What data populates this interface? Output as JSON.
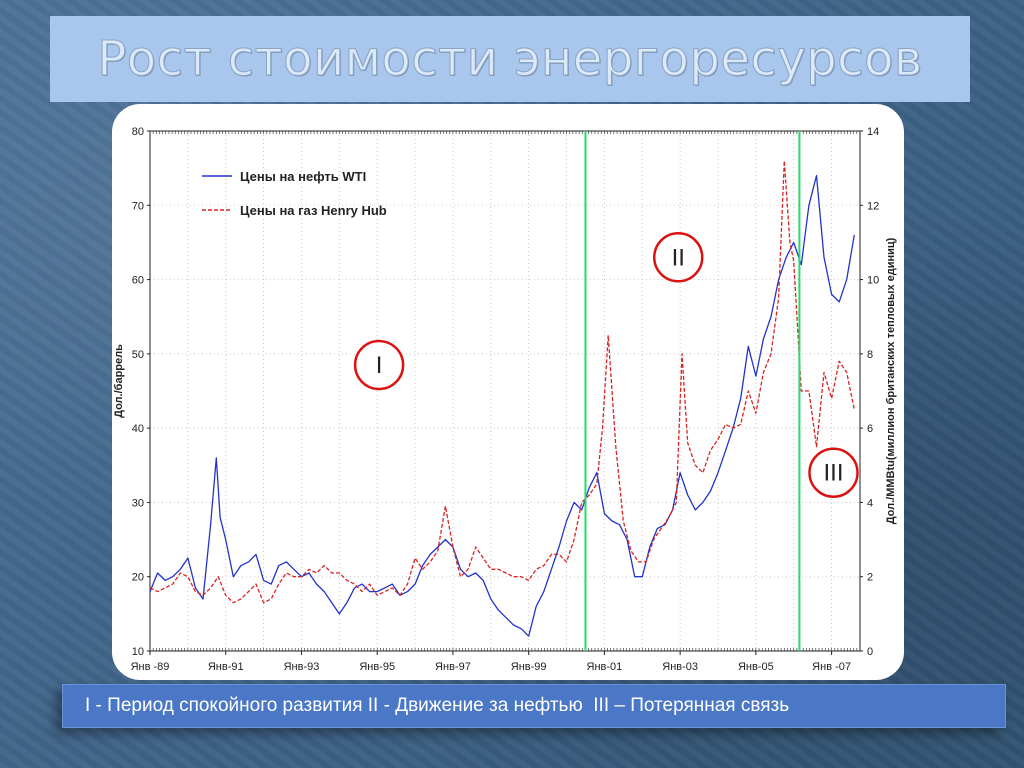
{
  "slide": {
    "title": "Рост стоимости энергоресурсов",
    "caption": "I - Период спокойного развития II - Движение за нефтью  III – Потерянная связь"
  },
  "colors": {
    "oil": "#2233cc",
    "gas": "#dd2222",
    "period_line": "#22dd66",
    "marker": "#dd1111"
  },
  "chart_data": {
    "type": "line",
    "ylabel": "Дол./баррель",
    "ylabel_right": "Дол./MMBtu(миллион британских тепловых единиц)",
    "ylim": [
      10,
      80
    ],
    "ylim_right": [
      0,
      14
    ],
    "y_ticks": [
      10,
      20,
      30,
      40,
      50,
      60,
      70,
      80
    ],
    "y_ticks_right": [
      0,
      2,
      4,
      6,
      8,
      10,
      12,
      14
    ],
    "x_range": [
      1989.0,
      2007.75
    ],
    "x_ticks": [
      {
        "x": 1989,
        "label": "Янв -89"
      },
      {
        "x": 1991,
        "label": "Янв-91"
      },
      {
        "x": 1993,
        "label": "Янв-93"
      },
      {
        "x": 1995,
        "label": "Янв-95"
      },
      {
        "x": 1997,
        "label": "Янв-97"
      },
      {
        "x": 1999,
        "label": "Янв-99"
      },
      {
        "x": 2001,
        "label": "Янв-01"
      },
      {
        "x": 2003,
        "label": "Янв-03"
      },
      {
        "x": 2005,
        "label": "Янв-05"
      },
      {
        "x": 2007,
        "label": "Янв -07"
      }
    ],
    "legend_position": "top-left",
    "grid": "dotted",
    "series": [
      {
        "name": "Цены на нефть WTI",
        "axis": "left",
        "x": [
          1989.0,
          1989.2,
          1989.4,
          1989.6,
          1989.8,
          1990.0,
          1990.2,
          1990.4,
          1990.6,
          1990.75,
          1990.85,
          1991.0,
          1991.2,
          1991.4,
          1991.6,
          1991.8,
          1992.0,
          1992.2,
          1992.4,
          1992.6,
          1992.8,
          1993.0,
          1993.2,
          1993.4,
          1993.6,
          1993.8,
          1994.0,
          1994.2,
          1994.4,
          1994.6,
          1994.8,
          1995.0,
          1995.2,
          1995.4,
          1995.6,
          1995.8,
          1996.0,
          1996.2,
          1996.4,
          1996.6,
          1996.8,
          1997.0,
          1997.2,
          1997.4,
          1997.6,
          1997.8,
          1998.0,
          1998.2,
          1998.4,
          1998.6,
          1998.8,
          1999.0,
          1999.2,
          1999.4,
          1999.6,
          1999.8,
          2000.0,
          2000.2,
          2000.4,
          2000.6,
          2000.8,
          2001.0,
          2001.2,
          2001.4,
          2001.6,
          2001.8,
          2002.0,
          2002.2,
          2002.4,
          2002.6,
          2002.8,
          2003.0,
          2003.2,
          2003.4,
          2003.6,
          2003.8,
          2004.0,
          2004.2,
          2004.4,
          2004.6,
          2004.8,
          2005.0,
          2005.2,
          2005.4,
          2005.6,
          2005.8,
          2006.0,
          2006.2,
          2006.4,
          2006.6,
          2006.8,
          2007.0,
          2007.2,
          2007.4,
          2007.6
        ],
        "values": [
          18.0,
          20.5,
          19.5,
          20.0,
          21.0,
          22.5,
          18.5,
          17.0,
          27.0,
          36.0,
          28.0,
          25.0,
          20.0,
          21.5,
          22.0,
          23.0,
          19.5,
          19.0,
          21.5,
          22.0,
          21.0,
          20.0,
          20.5,
          19.0,
          18.0,
          16.5,
          15.0,
          16.5,
          18.5,
          19.0,
          18.0,
          18.0,
          18.5,
          19.0,
          17.5,
          18.0,
          19.0,
          21.5,
          23.0,
          24.0,
          25.0,
          24.0,
          21.0,
          20.0,
          20.5,
          19.5,
          17.0,
          15.5,
          14.5,
          13.5,
          13.0,
          12.0,
          16.0,
          18.0,
          21.0,
          24.0,
          27.5,
          30.0,
          29.0,
          32.0,
          34.0,
          28.5,
          27.5,
          27.0,
          25.0,
          20.0,
          20.0,
          24.0,
          26.5,
          27.0,
          29.0,
          34.0,
          31.0,
          29.0,
          30.0,
          31.5,
          34.0,
          37.0,
          40.0,
          44.0,
          51.0,
          47.0,
          52.0,
          55.0,
          60.0,
          63.0,
          65.0,
          62.0,
          70.0,
          74.0,
          63.0,
          58.0,
          57.0,
          60.0,
          66.0
        ],
        "style": "solid"
      },
      {
        "name": "Цены на газ Henry Hub",
        "axis": "right",
        "x": [
          1989.0,
          1989.2,
          1989.4,
          1989.6,
          1989.8,
          1990.0,
          1990.2,
          1990.4,
          1990.6,
          1990.8,
          1991.0,
          1991.2,
          1991.4,
          1991.6,
          1991.8,
          1992.0,
          1992.2,
          1992.4,
          1992.6,
          1992.8,
          1993.0,
          1993.2,
          1993.4,
          1993.6,
          1993.8,
          1994.0,
          1994.2,
          1994.4,
          1994.6,
          1994.8,
          1995.0,
          1995.2,
          1995.4,
          1995.6,
          1995.8,
          1996.0,
          1996.2,
          1996.4,
          1996.6,
          1996.8,
          1997.0,
          1997.2,
          1997.4,
          1997.6,
          1997.8,
          1998.0,
          1998.2,
          1998.4,
          1998.6,
          1998.8,
          1999.0,
          1999.2,
          1999.4,
          1999.6,
          1999.8,
          2000.0,
          2000.2,
          2000.4,
          2000.6,
          2000.8,
          2000.95,
          2001.1,
          2001.3,
          2001.5,
          2001.7,
          2001.9,
          2002.1,
          2002.3,
          2002.5,
          2002.7,
          2002.9,
          2003.05,
          2003.2,
          2003.4,
          2003.6,
          2003.8,
          2004.0,
          2004.2,
          2004.4,
          2004.6,
          2004.8,
          2005.0,
          2005.2,
          2005.4,
          2005.6,
          2005.75,
          2005.9,
          2006.0,
          2006.2,
          2006.4,
          2006.6,
          2006.8,
          2007.0,
          2007.2,
          2007.4,
          2007.6
        ],
        "values": [
          1.7,
          1.6,
          1.7,
          1.8,
          2.1,
          2.0,
          1.6,
          1.5,
          1.7,
          2.0,
          1.5,
          1.3,
          1.4,
          1.6,
          1.8,
          1.3,
          1.4,
          1.8,
          2.1,
          2.0,
          2.0,
          2.2,
          2.1,
          2.3,
          2.1,
          2.1,
          1.9,
          1.8,
          1.6,
          1.8,
          1.5,
          1.6,
          1.7,
          1.5,
          1.8,
          2.5,
          2.2,
          2.4,
          2.7,
          3.9,
          2.8,
          2.0,
          2.2,
          2.8,
          2.5,
          2.2,
          2.2,
          2.1,
          2.0,
          2.0,
          1.9,
          2.2,
          2.3,
          2.6,
          2.6,
          2.4,
          3.0,
          4.0,
          4.2,
          4.5,
          6.0,
          8.5,
          5.5,
          3.5,
          2.7,
          2.4,
          2.4,
          3.0,
          3.3,
          3.6,
          4.0,
          8.0,
          5.6,
          5.0,
          4.8,
          5.4,
          5.7,
          6.1,
          6.0,
          6.1,
          7.0,
          6.4,
          7.5,
          8.0,
          9.5,
          13.2,
          11.0,
          10.5,
          7.0,
          7.0,
          5.5,
          7.5,
          6.8,
          7.8,
          7.5,
          6.5
        ],
        "style": "dashed"
      }
    ],
    "period_lines_x": [
      2000.5,
      2006.15
    ],
    "markers": [
      {
        "label": "I",
        "x": 1995.05,
        "y": 48.5
      },
      {
        "label": "II",
        "x": 2002.95,
        "y": 63.0
      },
      {
        "label": "III",
        "x": 2007.05,
        "y": 34.0
      }
    ]
  }
}
